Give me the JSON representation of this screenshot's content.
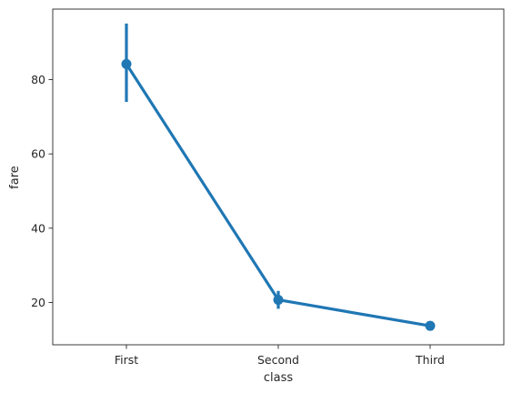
{
  "chart_data": {
    "type": "line",
    "title": "",
    "xlabel": "class",
    "ylabel": "fare",
    "categories": [
      "First",
      "Second",
      "Third"
    ],
    "series": [
      {
        "values": [
          84.2,
          20.7,
          13.7
        ],
        "ci_low": [
          74.0,
          18.3,
          12.7
        ],
        "ci_high": [
          95.1,
          23.1,
          14.9
        ]
      }
    ],
    "yticks": [
      20,
      40,
      60,
      80
    ],
    "ylim": [
      8.6,
      99.0
    ],
    "grid": false,
    "legend": "none",
    "color": "#1f77b4"
  }
}
